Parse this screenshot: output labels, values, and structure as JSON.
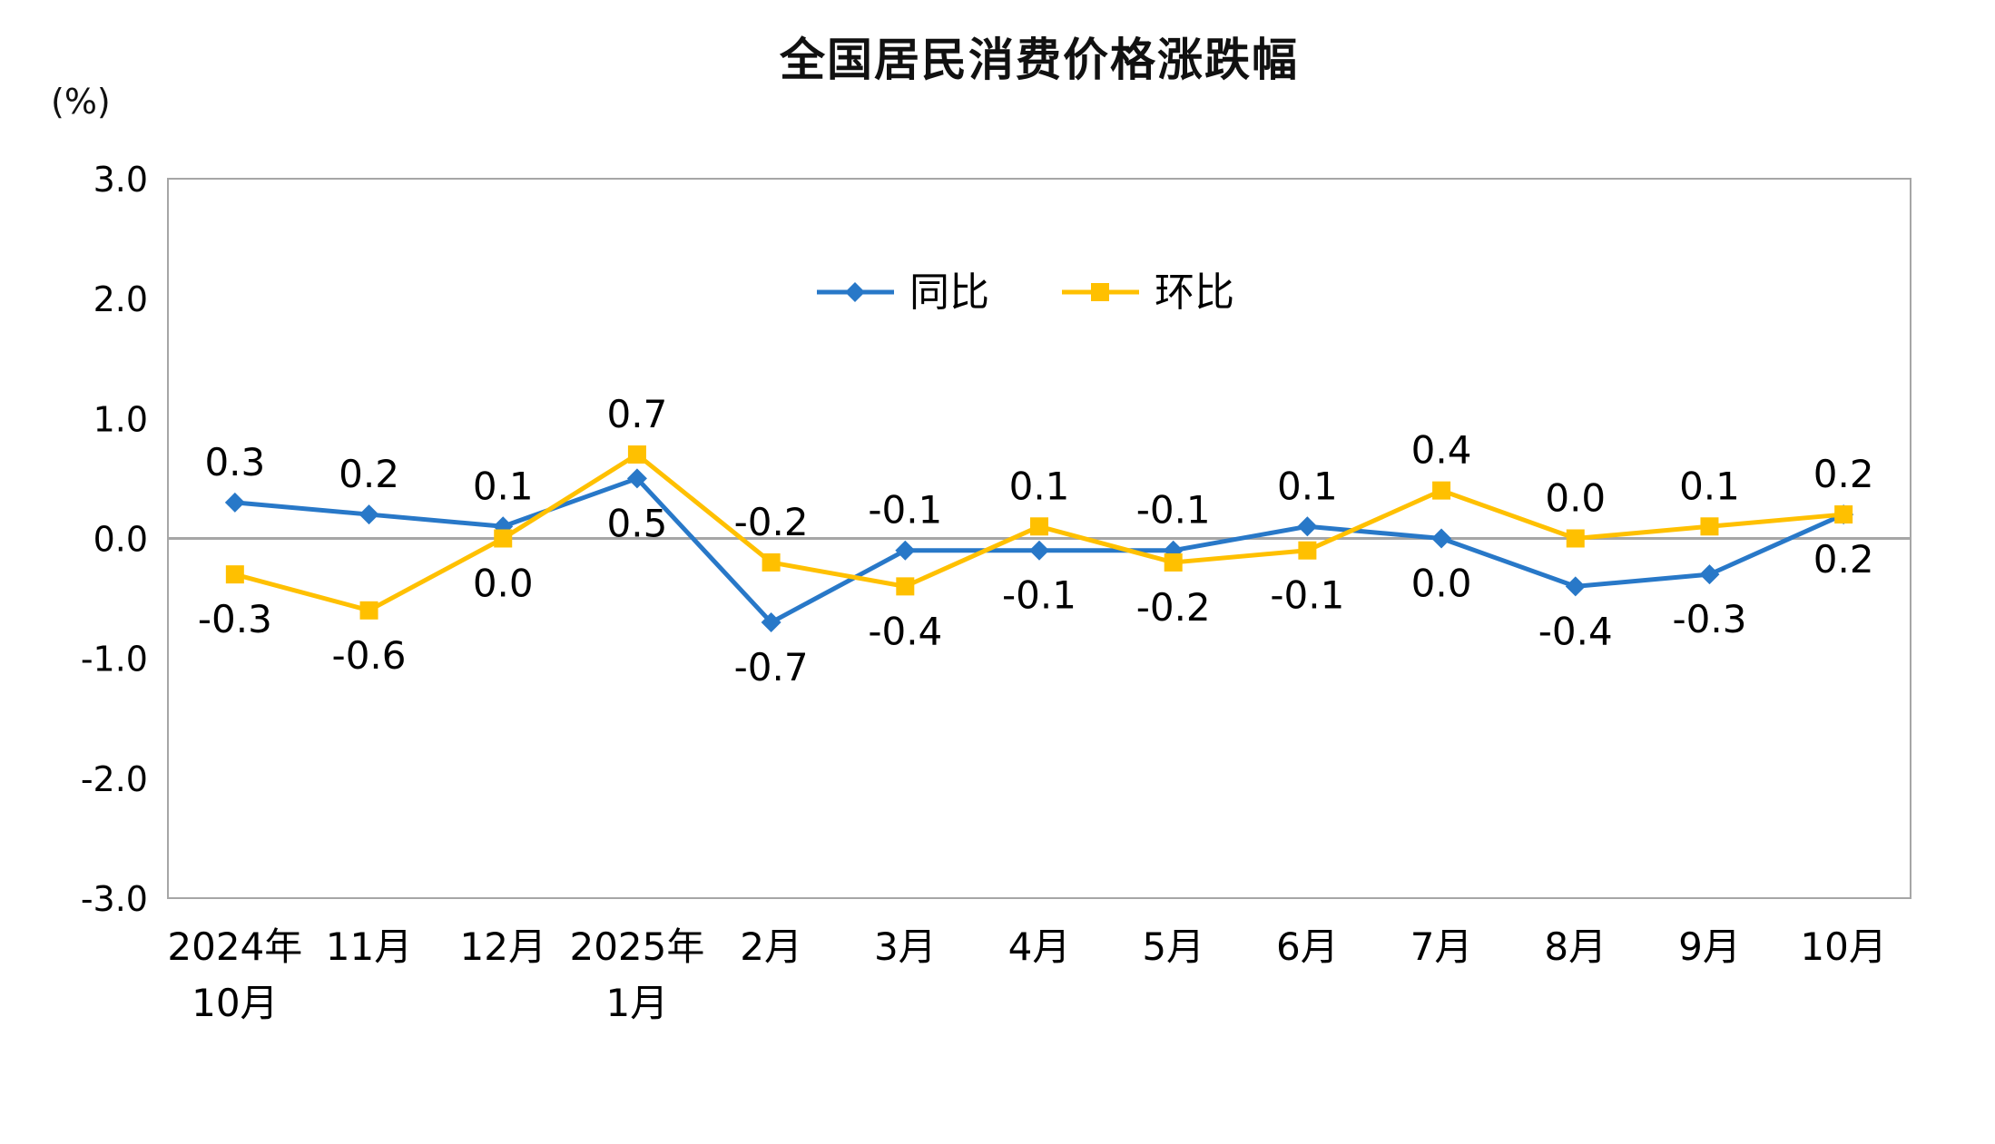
{
  "chart": {
    "title": "全国居民消费价格涨跌幅",
    "y_unit_label": "(%)"
  },
  "chart_data": {
    "type": "line",
    "title": "全国居民消费价格涨跌幅",
    "ylabel": "(%)",
    "xlabel": "",
    "ylim": [
      -3.0,
      3.0
    ],
    "ytick_step": 1.0,
    "ytick_labels": [
      "3.0",
      "2.0",
      "1.0",
      "0.0",
      "-1.0",
      "-2.0",
      "-3.0"
    ],
    "grid": false,
    "legend_position": "top-center-inside",
    "axis_color": "#A6A6A6",
    "text_color": "#000000",
    "categories": [
      "2024年\n10月",
      "11月",
      "12月",
      "2025年\n1月",
      "2月",
      "3月",
      "4月",
      "5月",
      "6月",
      "7月",
      "8月",
      "9月",
      "10月"
    ],
    "series": [
      {
        "name": "同比",
        "color": "#2878C8",
        "marker": "diamond",
        "values": [
          0.3,
          0.2,
          0.1,
          0.5,
          -0.7,
          -0.1,
          -0.1,
          -0.1,
          0.1,
          0.0,
          -0.4,
          -0.3,
          0.2
        ],
        "labels": [
          "0.3",
          "0.2",
          "0.1",
          "0.5",
          "-0.7",
          "-0.1",
          "-0.1",
          "-0.1",
          "0.1",
          "0.0",
          "-0.4",
          "-0.3",
          "0.2"
        ]
      },
      {
        "name": "环比",
        "color": "#FFC000",
        "marker": "square",
        "values": [
          -0.3,
          -0.6,
          0.0,
          0.7,
          -0.2,
          -0.4,
          0.1,
          -0.2,
          -0.1,
          0.4,
          0.0,
          0.1,
          0.2
        ],
        "labels": [
          "-0.3",
          "-0.6",
          "0.0",
          "0.7",
          "-0.2",
          "-0.4",
          "0.1",
          "-0.2",
          "-0.1",
          "0.4",
          "0.0",
          "0.1",
          "0.2"
        ]
      }
    ]
  }
}
